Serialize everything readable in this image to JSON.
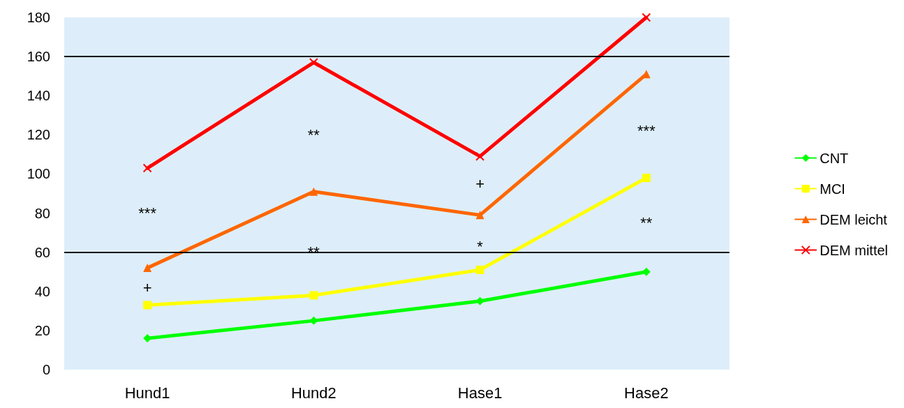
{
  "chart_data": {
    "type": "line",
    "categories": [
      "Hund1",
      "Hund2",
      "Hase1",
      "Hase2"
    ],
    "series": [
      {
        "name": "CNT",
        "color": "#00ff00",
        "marker": "diamond",
        "values": [
          16,
          25,
          35,
          50
        ]
      },
      {
        "name": "MCI",
        "color": "#ffff00",
        "marker": "square",
        "values": [
          33,
          38,
          51,
          98
        ]
      },
      {
        "name": "DEM leicht",
        "color": "#ff6600",
        "marker": "triangle",
        "values": [
          52,
          91,
          79,
          151
        ]
      },
      {
        "name": "DEM mittel",
        "color": "#ff0000",
        "marker": "cross",
        "values": [
          103,
          157,
          109,
          180
        ]
      }
    ],
    "ylim": [
      0,
      180
    ],
    "yticks": [
      0,
      20,
      40,
      60,
      80,
      100,
      120,
      140,
      160,
      180
    ],
    "grid": false,
    "legend": "right",
    "line_style": "solid",
    "ref_lines": [
      {
        "axis": "y",
        "value": 60,
        "label": null,
        "color": "#000000"
      },
      {
        "axis": "y",
        "value": 160,
        "label": null,
        "color": "#000000"
      }
    ],
    "annotations": [
      "***",
      "+",
      "**",
      "**",
      "+",
      "*",
      "***",
      "**"
    ]
  }
}
